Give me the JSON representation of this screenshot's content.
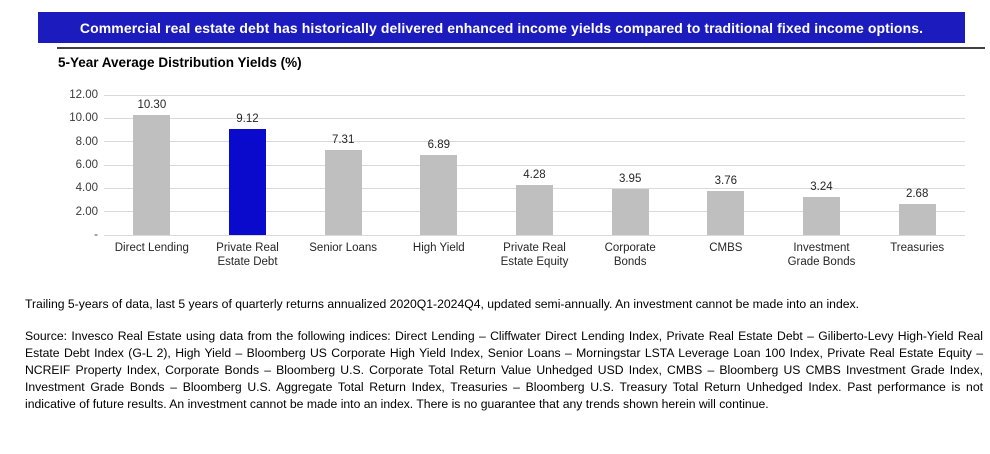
{
  "banner": {
    "text": "Commercial real estate debt has historically delivered enhanced income yields compared to traditional fixed income options.",
    "bg_color": "#1c1cbe",
    "text_color": "#ffffff"
  },
  "chart_data": {
    "type": "bar",
    "title": "5-Year Average Distribution Yields (%)",
    "categories": [
      "Direct Lending",
      "Private Real Estate Debt",
      "Senior Loans",
      "High Yield",
      "Private Real Estate Equity",
      "Corporate Bonds",
      "CMBS",
      "Investment Grade Bonds",
      "Treasuries"
    ],
    "category_lines": [
      [
        "Direct Lending"
      ],
      [
        "Private Real",
        "Estate Debt"
      ],
      [
        "Senior Loans"
      ],
      [
        "High Yield"
      ],
      [
        "Private Real",
        "Estate Equity"
      ],
      [
        "Corporate",
        "Bonds"
      ],
      [
        "CMBS"
      ],
      [
        "Investment",
        "Grade Bonds"
      ],
      [
        "Treasuries"
      ]
    ],
    "values": [
      10.3,
      9.12,
      7.31,
      6.89,
      4.28,
      3.95,
      3.76,
      3.24,
      2.68
    ],
    "value_labels": [
      "10.30",
      "9.12",
      "7.31",
      "6.89",
      "4.28",
      "3.95",
      "3.76",
      "3.24",
      "2.68"
    ],
    "xlabel": "",
    "ylabel": "",
    "ylim": [
      0,
      12
    ],
    "yticks": [
      {
        "label": "12.00",
        "value": 12
      },
      {
        "label": "10.00",
        "value": 10
      },
      {
        "label": "8.00",
        "value": 8
      },
      {
        "label": "6.00",
        "value": 6
      },
      {
        "label": "4.00",
        "value": 4
      },
      {
        "label": "2.00",
        "value": 2
      },
      {
        "label": "-",
        "value": 0
      }
    ],
    "grid": true,
    "legend": "none",
    "highlight_index": 1,
    "bar_default_color": "#bfbfbf",
    "bar_highlight_color": "#0a0acc",
    "gridline_color": "#d9d9d9"
  },
  "footnotes": {
    "trailing_note": "Trailing 5-years of data, last 5 years of quarterly returns annualized 2020Q1-2024Q4, updated semi-annually. An investment cannot be made into an index.",
    "source_note": "Source: Invesco Real Estate using data from the following indices: Direct Lending – Cliffwater Direct Lending Index, Private Real Estate Debt – Giliberto-Levy High-Yield Real Estate Debt Index (G-L 2), High Yield – Bloomberg US Corporate High Yield Index, Senior Loans – Morningstar LSTA Leverage Loan 100 Index, Private Real Estate Equity – NCREIF Property Index, Corporate Bonds – Bloomberg U.S. Corporate Total Return Value Unhedged USD Index, CMBS – Bloomberg US CMBS Investment Grade Index, Investment Grade Bonds – Bloomberg U.S. Aggregate Total Return Index, Treasuries – Bloomberg U.S. Treasury Total Return Unhedged Index. Past performance is not indicative of future results. An investment cannot be made into an index. There is no guarantee that any trends shown herein will continue."
  }
}
